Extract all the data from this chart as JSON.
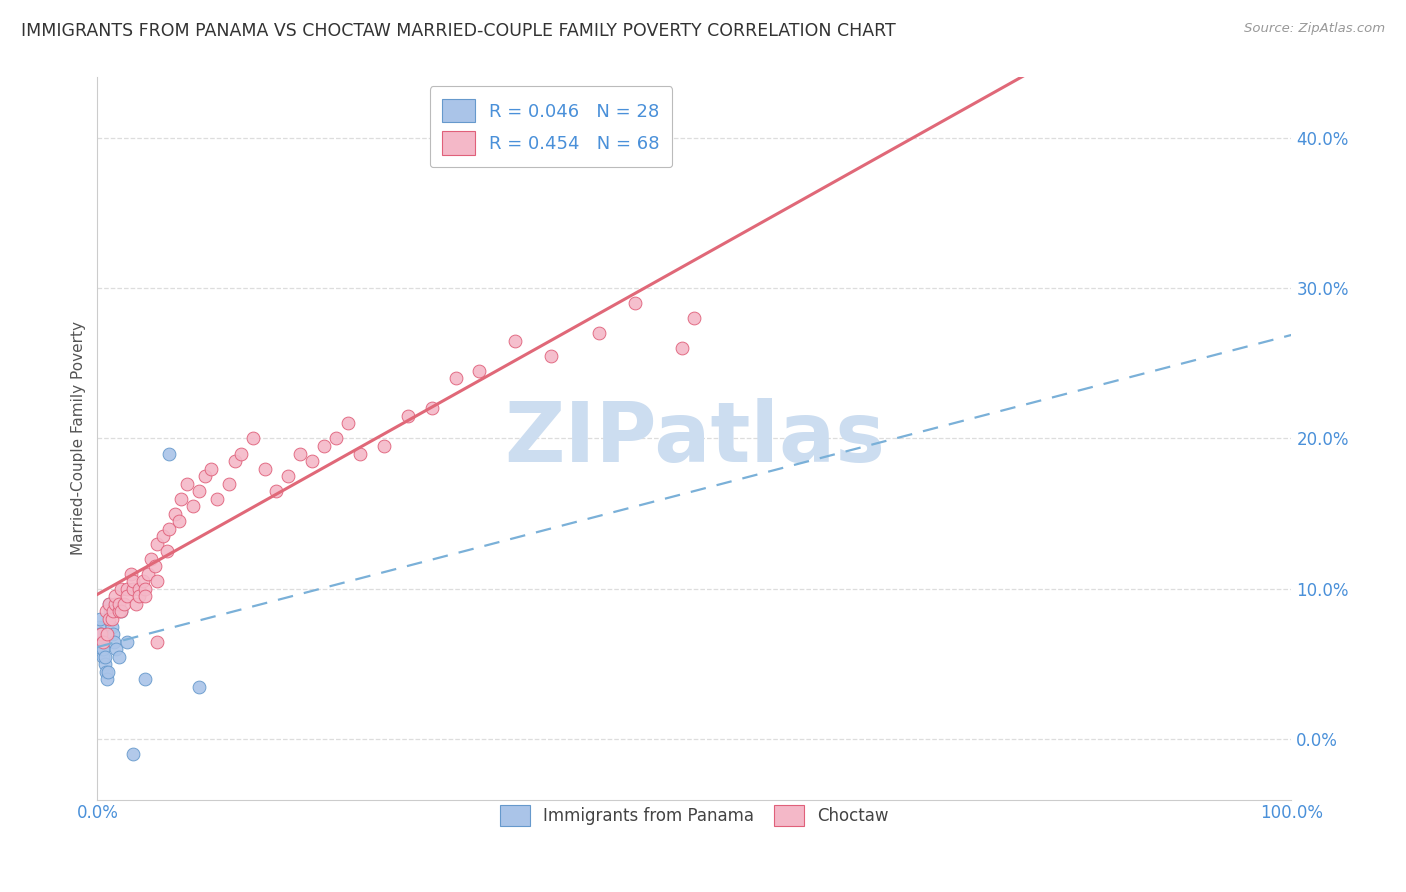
{
  "title": "IMMIGRANTS FROM PANAMA VS CHOCTAW MARRIED-COUPLE FAMILY POVERTY CORRELATION CHART",
  "source": "Source: ZipAtlas.com",
  "ylabel": "Married-Couple Family Poverty",
  "xlim": [
    0,
    1.0
  ],
  "ylim": [
    -0.04,
    0.44
  ],
  "yticks": [
    0.0,
    0.1,
    0.2,
    0.3,
    0.4
  ],
  "ytick_labels": [
    "0.0%",
    "10.0%",
    "20.0%",
    "30.0%",
    "40.0%"
  ],
  "xticks": [
    0.0,
    1.0
  ],
  "xtick_labels": [
    "0.0%",
    "100.0%"
  ],
  "series": [
    {
      "name": "Immigrants from Panama",
      "R": 0.046,
      "N": 28,
      "color": "#aac4e8",
      "edge_color": "#6699cc",
      "line_color": "#7ab0d8",
      "line_style": "--",
      "x": [
        0.001,
        0.001,
        0.002,
        0.002,
        0.003,
        0.003,
        0.004,
        0.004,
        0.005,
        0.005,
        0.006,
        0.006,
        0.007,
        0.008,
        0.009,
        0.01,
        0.011,
        0.012,
        0.013,
        0.014,
        0.016,
        0.018,
        0.02,
        0.025,
        0.03,
        0.04,
        0.06,
        0.085
      ],
      "y": [
        0.065,
        0.075,
        0.07,
        0.08,
        0.065,
        0.07,
        0.06,
        0.065,
        0.055,
        0.06,
        0.05,
        0.055,
        0.045,
        0.04,
        0.045,
        0.09,
        0.085,
        0.075,
        0.07,
        0.065,
        0.06,
        0.055,
        0.085,
        0.065,
        -0.01,
        0.04,
        0.19,
        0.035
      ]
    },
    {
      "name": "Choctaw",
      "R": 0.454,
      "N": 68,
      "color": "#f4b8c8",
      "edge_color": "#e0607a",
      "line_color": "#e06878",
      "line_style": "-",
      "x": [
        0.003,
        0.005,
        0.007,
        0.008,
        0.01,
        0.01,
        0.012,
        0.013,
        0.015,
        0.015,
        0.018,
        0.018,
        0.02,
        0.02,
        0.022,
        0.025,
        0.025,
        0.028,
        0.03,
        0.03,
        0.032,
        0.035,
        0.035,
        0.038,
        0.04,
        0.04,
        0.042,
        0.045,
        0.048,
        0.05,
        0.05,
        0.055,
        0.058,
        0.06,
        0.065,
        0.068,
        0.07,
        0.075,
        0.08,
        0.085,
        0.09,
        0.095,
        0.1,
        0.11,
        0.115,
        0.12,
        0.13,
        0.14,
        0.15,
        0.16,
        0.17,
        0.18,
        0.19,
        0.2,
        0.21,
        0.22,
        0.24,
        0.26,
        0.28,
        0.3,
        0.32,
        0.35,
        0.38,
        0.42,
        0.45,
        0.49,
        0.05,
        0.5
      ],
      "y": [
        0.07,
        0.065,
        0.085,
        0.07,
        0.08,
        0.09,
        0.08,
        0.085,
        0.09,
        0.095,
        0.085,
        0.09,
        0.1,
        0.085,
        0.09,
        0.1,
        0.095,
        0.11,
        0.1,
        0.105,
        0.09,
        0.1,
        0.095,
        0.105,
        0.1,
        0.095,
        0.11,
        0.12,
        0.115,
        0.13,
        0.105,
        0.135,
        0.125,
        0.14,
        0.15,
        0.145,
        0.16,
        0.17,
        0.155,
        0.165,
        0.175,
        0.18,
        0.16,
        0.17,
        0.185,
        0.19,
        0.2,
        0.18,
        0.165,
        0.175,
        0.19,
        0.185,
        0.195,
        0.2,
        0.21,
        0.19,
        0.195,
        0.215,
        0.22,
        0.24,
        0.245,
        0.265,
        0.255,
        0.27,
        0.29,
        0.26,
        0.065,
        0.28
      ]
    }
  ],
  "watermark": "ZIPatlas",
  "watermark_color": "#ccddf0",
  "background_color": "#ffffff",
  "grid_color": "#dddddd",
  "title_color": "#333333",
  "axis_color": "#4a90d9"
}
